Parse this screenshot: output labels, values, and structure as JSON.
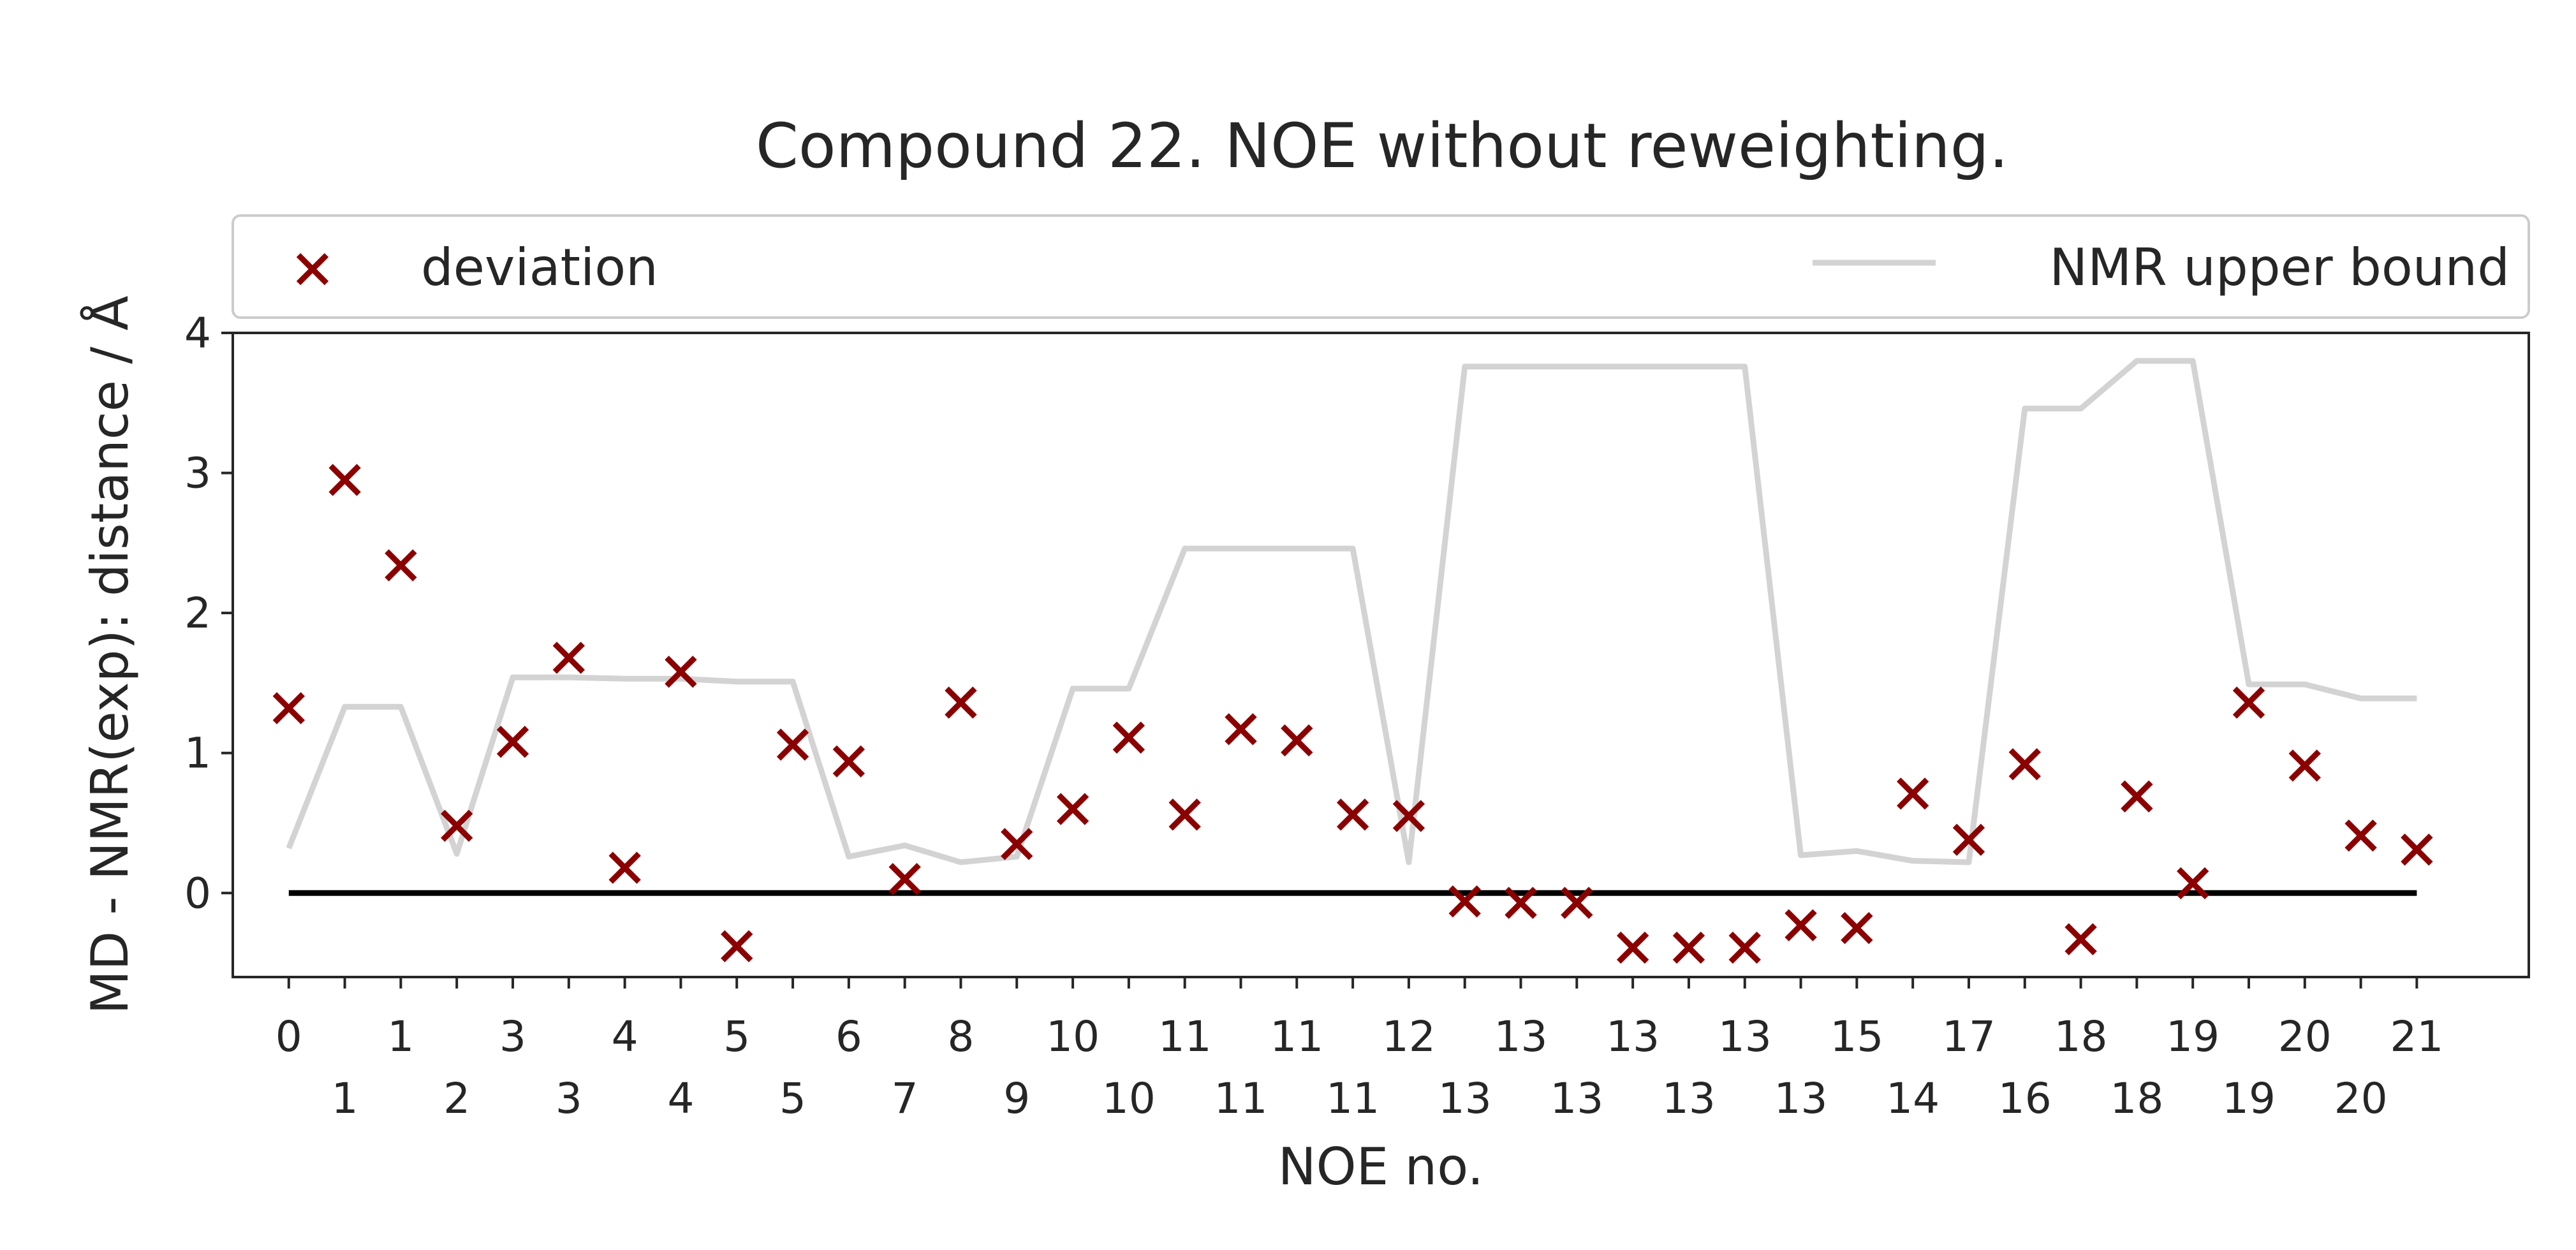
{
  "chart_data": {
    "type": "scatter",
    "title": "Compound 22. NOE without reweighting.",
    "xlabel": "NOE no.",
    "ylabel": "MD - NMR(exp): distance / Å",
    "ylim": [
      -0.6,
      4.0
    ],
    "xlim": [
      -1.0,
      40.0
    ],
    "yticks": [
      0,
      1,
      2,
      3,
      4
    ],
    "grid": false,
    "legend_position": "top (outside plot)",
    "x_tick_labels_row1": [
      "0",
      "1",
      "3",
      "4",
      "5",
      "6",
      "8",
      "10",
      "11",
      "11",
      "12",
      "13",
      "13",
      "13",
      "15",
      "17",
      "18",
      "19",
      "20",
      "21"
    ],
    "x_tick_labels_row2": [
      "1",
      "2",
      "3",
      "4",
      "5",
      "7",
      "9",
      "10",
      "11",
      "11",
      "13",
      "13",
      "13",
      "13",
      "14",
      "16",
      "18",
      "19",
      "20",
      "21"
    ],
    "series": [
      {
        "name": "deviation",
        "kind": "scatter",
        "marker": "x",
        "color": "#8b0000",
        "values": [
          1.32,
          2.95,
          2.34,
          0.48,
          1.08,
          1.68,
          0.18,
          1.58,
          -0.38,
          1.06,
          0.94,
          0.1,
          1.36,
          0.35,
          0.6,
          1.11,
          0.56,
          1.17,
          1.09,
          0.56,
          0.55,
          -0.06,
          -0.07,
          -0.07,
          -0.39,
          -0.39,
          -0.39,
          -0.23,
          -0.25,
          0.71,
          0.38,
          0.92,
          -0.33,
          0.69,
          0.07,
          1.36,
          0.91,
          0.41,
          0.31
        ]
      },
      {
        "name": "NMR upper bound",
        "kind": "line",
        "color": "#d3d3d3",
        "values": [
          0.32,
          1.33,
          1.33,
          0.28,
          1.54,
          1.54,
          1.53,
          1.53,
          1.51,
          1.51,
          0.26,
          0.34,
          0.22,
          0.26,
          1.46,
          1.46,
          2.46,
          2.46,
          2.46,
          2.46,
          0.22,
          3.76,
          3.76,
          3.76,
          3.76,
          3.76,
          3.76,
          0.27,
          0.3,
          0.23,
          0.22,
          3.46,
          3.46,
          3.8,
          3.8,
          1.49,
          1.49,
          1.39,
          1.39
        ]
      },
      {
        "name": "",
        "kind": "zero-line",
        "color": "#000000",
        "values": [
          0,
          0
        ]
      }
    ]
  },
  "legend": {
    "deviation_label": "deviation",
    "bound_label": "NMR upper bound"
  }
}
